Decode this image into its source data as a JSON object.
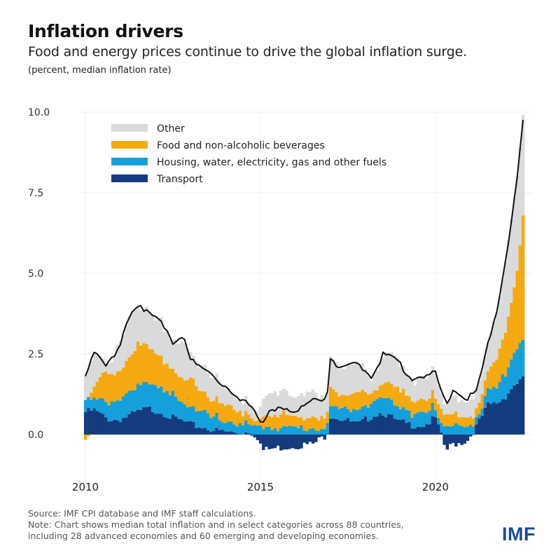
{
  "header": {
    "title": "Inflation drivers",
    "subtitle": "Food and energy prices continue to drive the global inflation surge.",
    "unit_note": "(percent, median inflation rate)"
  },
  "footer": {
    "source": "Source: IMF CPI database and IMF staff calculations.",
    "note_line1": "Note: Chart shows median total inflation and in select categories across 88 countries,",
    "note_line2": "including 28 advanced economies and 60 emerging and developing economies."
  },
  "logo": {
    "text": "IMF",
    "color": "#1a4b9b"
  },
  "chart_data": {
    "type": "bar",
    "stacked": true,
    "title": "Inflation drivers",
    "subtitle": "Food and energy prices continue to drive the global inflation surge.",
    "xlabel": "",
    "ylabel": "percent, median inflation rate",
    "ylim": [
      -1.2,
      10.0
    ],
    "yticks": [
      "10.0",
      "7.5",
      "5.0",
      "2.5",
      "0.0"
    ],
    "ytick_values": [
      10.0,
      7.5,
      5.0,
      2.5,
      0.0
    ],
    "xticks": [
      "2010",
      "2015",
      "2020"
    ],
    "xtick_values": [
      2010,
      2015,
      2020
    ],
    "grid": true,
    "legend_position": "top-left",
    "frequency": "monthly",
    "start": "2010-01",
    "colors": {
      "Other": "#d9dadb",
      "Food and non-alcoholic beverages": "#f5a90f",
      "Housing, water, electricity, gas and other fuels": "#14a0dc",
      "Transport": "#143b7f",
      "Total": "#111111"
    },
    "legend": [
      "Other",
      "Food and non-alcoholic beverages",
      "Housing, water, electricity, gas and other fuels",
      "Transport"
    ],
    "anchors": {
      "x": [
        2010.0,
        2010.25,
        2010.6,
        2010.9,
        2011.3,
        2011.5,
        2011.8,
        2012.2,
        2012.5,
        2012.8,
        2013.0,
        2013.5,
        2013.8,
        2014.3,
        2014.7,
        2014.95,
        2015.05,
        2015.3,
        2015.6,
        2016.0,
        2016.5,
        2016.9,
        2017.0,
        2017.3,
        2017.8,
        2018.2,
        2018.5,
        2018.9,
        2019.3,
        2019.7,
        2020.0,
        2020.3,
        2020.5,
        2020.9,
        2021.2,
        2021.5,
        2021.8,
        2022.0,
        2022.3,
        2022.5
      ],
      "transport": [
        0.7,
        0.75,
        0.5,
        0.45,
        0.6,
        0.7,
        0.8,
        0.7,
        0.5,
        0.4,
        0.3,
        0.2,
        0.1,
        0.05,
        0.1,
        -0.1,
        -0.5,
        -0.45,
        -0.4,
        -0.35,
        -0.3,
        0.0,
        0.6,
        0.5,
        0.3,
        0.6,
        0.7,
        0.4,
        0.3,
        0.3,
        0.5,
        -0.5,
        -0.3,
        -0.2,
        0.3,
        0.9,
        1.0,
        1.2,
        1.6,
        1.7
      ],
      "housing": [
        0.35,
        0.4,
        0.55,
        0.55,
        0.7,
        0.8,
        0.8,
        0.75,
        0.7,
        0.6,
        0.5,
        0.45,
        0.35,
        0.3,
        0.25,
        0.2,
        0.25,
        0.25,
        0.2,
        0.2,
        0.2,
        0.25,
        0.3,
        0.35,
        0.4,
        0.45,
        0.5,
        0.45,
        0.4,
        0.35,
        0.3,
        0.3,
        0.3,
        0.2,
        0.2,
        0.5,
        0.6,
        0.7,
        1.0,
        1.2
      ],
      "food": [
        -0.05,
        0.3,
        0.9,
        0.9,
        1.1,
        1.2,
        1.1,
        1.0,
        0.8,
        0.7,
        0.8,
        0.6,
        0.5,
        0.4,
        0.3,
        0.15,
        0.3,
        0.3,
        0.4,
        0.35,
        0.3,
        0.3,
        0.6,
        0.4,
        0.5,
        0.3,
        0.5,
        0.5,
        0.4,
        0.5,
        0.4,
        0.3,
        0.3,
        0.4,
        0.3,
        0.5,
        0.9,
        1.4,
        2.2,
        3.8
      ],
      "other": [
        0.75,
        1.05,
        0.25,
        0.7,
        1.3,
        1.2,
        1.2,
        1.05,
        0.8,
        1.3,
        0.8,
        0.75,
        0.65,
        0.45,
        0.35,
        0.15,
        0.5,
        0.75,
        0.75,
        0.5,
        0.9,
        0.6,
        0.9,
        0.75,
        1.0,
        0.45,
        0.8,
        0.95,
        0.65,
        0.65,
        0.7,
        0.4,
        0.6,
        0.35,
        0.6,
        0.9,
        1.6,
        2.1,
        2.8,
        3.0
      ],
      "total": [
        1.8,
        2.5,
        2.2,
        2.6,
        3.7,
        3.9,
        3.9,
        3.5,
        2.8,
        3.0,
        2.4,
        2.0,
        1.6,
        1.2,
        1.0,
        0.4,
        0.3,
        0.75,
        0.9,
        0.65,
        1.1,
        1.15,
        2.4,
        2.0,
        2.2,
        1.8,
        2.5,
        2.3,
        1.75,
        1.8,
        1.9,
        0.9,
        1.4,
        1.1,
        1.4,
        2.8,
        4.1,
        5.4,
        7.6,
        9.7
      ]
    }
  }
}
